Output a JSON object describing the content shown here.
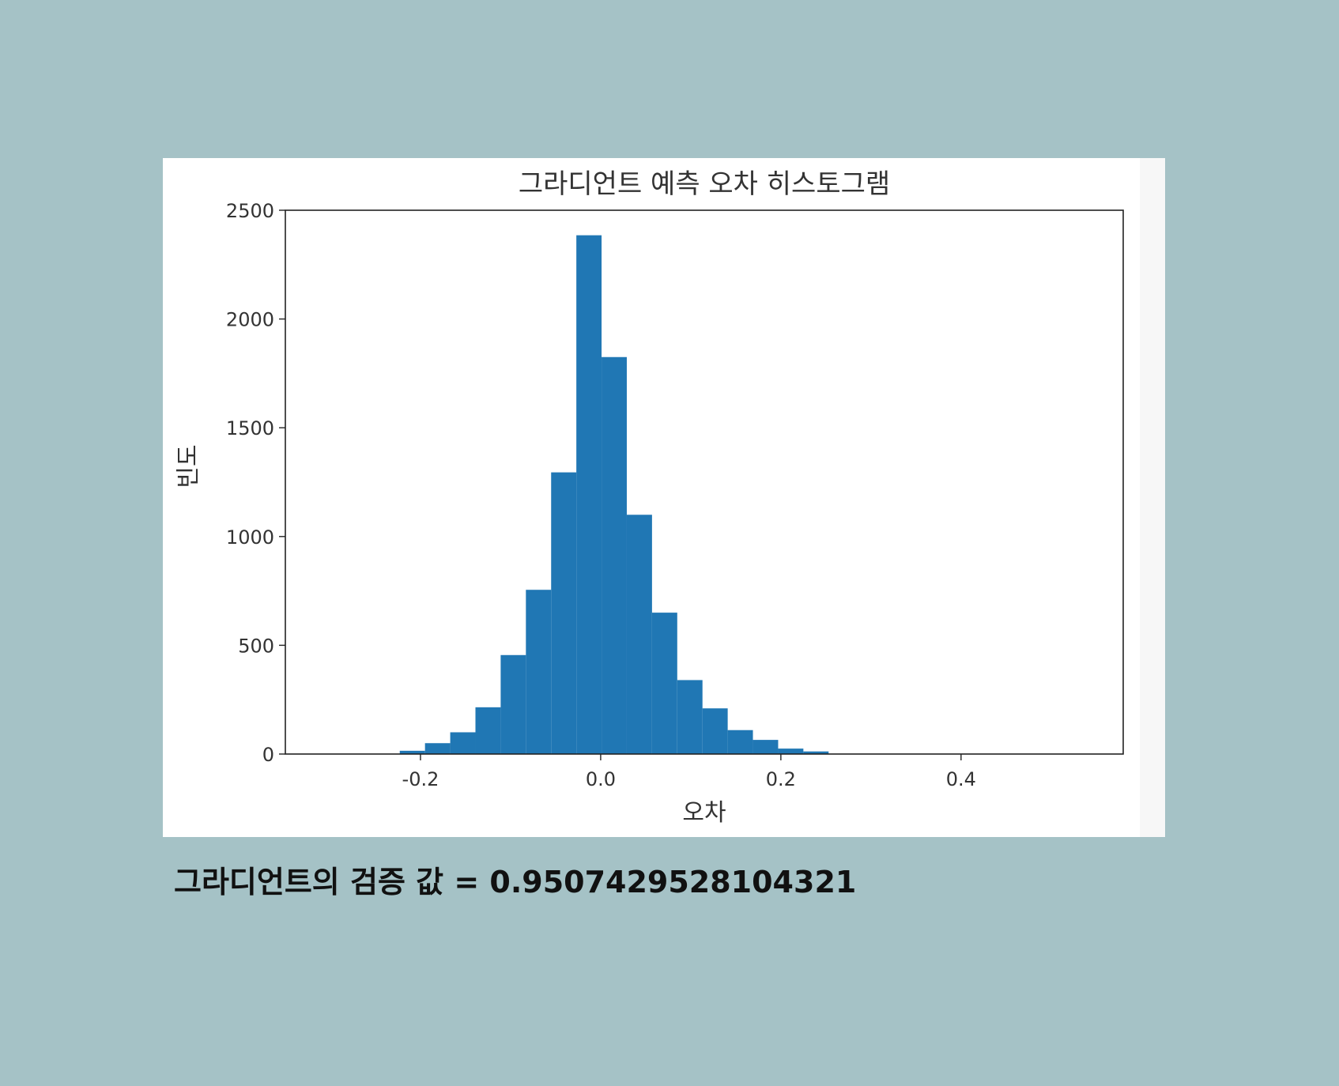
{
  "chart_data": {
    "type": "bar",
    "title": "그라디언트 예측 오차 히스토그램",
    "xlabel": "오차",
    "ylabel": "빈도",
    "xlim": [
      -0.35,
      0.58
    ],
    "ylim": [
      0,
      2500
    ],
    "x_ticks": [
      -0.2,
      0.0,
      0.2,
      0.4
    ],
    "x_tick_labels": [
      "-0.2",
      "0.0",
      "0.2",
      "0.4"
    ],
    "y_ticks": [
      0,
      500,
      1000,
      1500,
      2000,
      2500
    ],
    "y_tick_labels": [
      "0",
      "500",
      "1000",
      "1500",
      "2000",
      "2500"
    ],
    "bins": [
      {
        "x0": -0.223,
        "x1": -0.195,
        "count": 15
      },
      {
        "x0": -0.195,
        "x1": -0.167,
        "count": 50
      },
      {
        "x0": -0.167,
        "x1": -0.139,
        "count": 100
      },
      {
        "x0": -0.139,
        "x1": -0.111,
        "count": 215
      },
      {
        "x0": -0.111,
        "x1": -0.083,
        "count": 455
      },
      {
        "x0": -0.083,
        "x1": -0.055,
        "count": 755
      },
      {
        "x0": -0.055,
        "x1": -0.027,
        "count": 1295
      },
      {
        "x0": -0.027,
        "x1": 0.001,
        "count": 2385
      },
      {
        "x0": 0.001,
        "x1": 0.029,
        "count": 1825
      },
      {
        "x0": 0.029,
        "x1": 0.057,
        "count": 1100
      },
      {
        "x0": 0.057,
        "x1": 0.085,
        "count": 650
      },
      {
        "x0": 0.085,
        "x1": 0.113,
        "count": 340
      },
      {
        "x0": 0.113,
        "x1": 0.141,
        "count": 210
      },
      {
        "x0": 0.141,
        "x1": 0.169,
        "count": 110
      },
      {
        "x0": 0.169,
        "x1": 0.197,
        "count": 65
      },
      {
        "x0": 0.197,
        "x1": 0.225,
        "count": 25
      },
      {
        "x0": 0.225,
        "x1": 0.253,
        "count": 12
      }
    ],
    "bar_color": "#2077b4",
    "grid": false,
    "legend": "none"
  },
  "result": {
    "text": "그라디언트의 검증 값 = 0.9507429528104321"
  },
  "colors": {
    "background": "#a5c2c6",
    "panel": "#ffffff",
    "bar": "#2077b4",
    "axis": "#222222",
    "text": "#333333"
  }
}
